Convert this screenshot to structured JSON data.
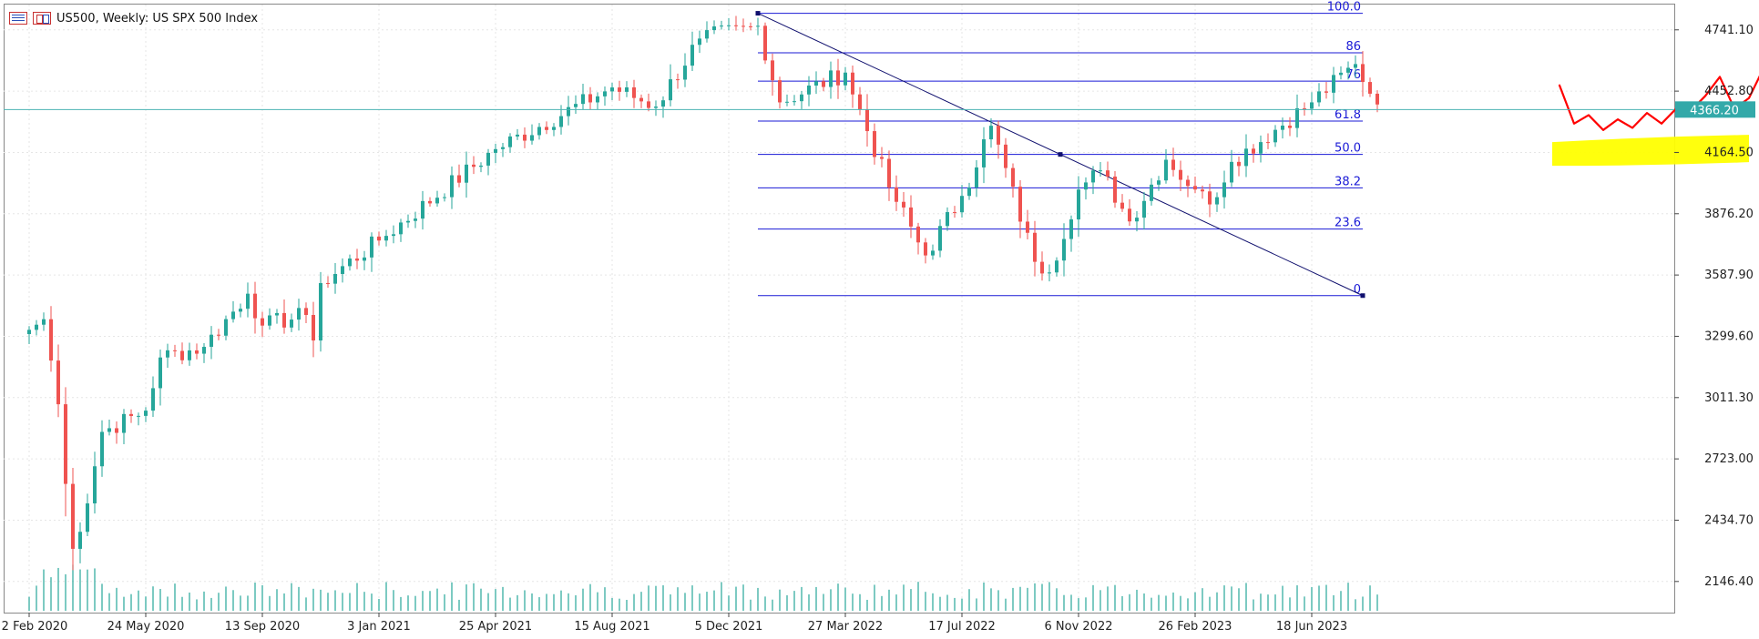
{
  "header": {
    "title": "US500, Weekly:  US SPX 500 Index"
  },
  "current_price_label": "4366.20",
  "colors": {
    "bull": "#26a69a",
    "bear": "#ef5350",
    "fib": "#1a1ad6",
    "trend": "#10106e",
    "price_line": "#4bb3b3",
    "price_badge": "#33a9a9",
    "forecast": "#ff0000",
    "highlight": "#ffff00",
    "volume": "#26a69a",
    "grid": "#e6e6e6"
  },
  "chart_data": {
    "type": "candlestick",
    "symbol": "US500",
    "timeframe": "Weekly",
    "description": "US SPX 500 Index",
    "y_axis": {
      "ticks": [
        "4741.10",
        "4452.80",
        "4164.50",
        "3876.20",
        "3587.90",
        "3299.60",
        "3011.30",
        "2723.00",
        "2434.70",
        "2146.40"
      ],
      "min": 2000,
      "max": 4860
    },
    "x_axis": {
      "ticks": [
        "2 Feb 2020",
        "24 May 2020",
        "13 Sep 2020",
        "3 Jan 2021",
        "25 Apr 2021",
        "15 Aug 2021",
        "5 Dec 2021",
        "27 Mar 2022",
        "17 Jul 2022",
        "6 Nov 2022",
        "26 Feb 2023",
        "18 Jun 2023"
      ],
      "weeks_between_ticks": 16,
      "first_tick_date": "2 Feb 2020",
      "visible_weeks": 225
    },
    "current_price": 4366.2,
    "weekly_close_keypoints": [
      {
        "date": "2 Feb 2020",
        "close": 3330
      },
      {
        "date": "16 Feb 2020",
        "close": 3380
      },
      {
        "date": "1 Mar 2020",
        "close": 2980
      },
      {
        "date": "15 Mar 2020",
        "close": 2300
      },
      {
        "date": "22 Mar 2020",
        "close": 2380
      },
      {
        "date": "12 Apr 2020",
        "close": 2850
      },
      {
        "date": "24 May 2020",
        "close": 2950
      },
      {
        "date": "7 Jun 2020",
        "close": 3200
      },
      {
        "date": "19 Jul 2020",
        "close": 3250
      },
      {
        "date": "30 Aug 2020",
        "close": 3500
      },
      {
        "date": "13 Sep 2020",
        "close": 3350
      },
      {
        "date": "25 Oct 2020",
        "close": 3400
      },
      {
        "date": "1 Nov 2020",
        "close": 3280
      },
      {
        "date": "8 Nov 2020",
        "close": 3550
      },
      {
        "date": "3 Jan 2021",
        "close": 3750
      },
      {
        "date": "25 Apr 2021",
        "close": 4180
      },
      {
        "date": "15 Aug 2021",
        "close": 4470
      },
      {
        "date": "26 Sep 2021",
        "close": 4380
      },
      {
        "date": "7 Nov 2021",
        "close": 4700
      },
      {
        "date": "2 Jan 2022",
        "close": 4760
      },
      {
        "date": "23 Jan 2022",
        "close": 4400
      },
      {
        "date": "27 Mar 2022",
        "close": 4540
      },
      {
        "date": "8 May 2022",
        "close": 4000
      },
      {
        "date": "12 Jun 2022",
        "close": 3680
      },
      {
        "date": "17 Jul 2022",
        "close": 3960
      },
      {
        "date": "14 Aug 2022",
        "close": 4290
      },
      {
        "date": "25 Sep 2022",
        "close": 3650
      },
      {
        "date": "9 Oct 2022",
        "close": 3600
      },
      {
        "date": "6 Nov 2022",
        "close": 3990
      },
      {
        "date": "27 Nov 2022",
        "close": 4080
      },
      {
        "date": "25 Dec 2022",
        "close": 3840
      },
      {
        "date": "29 Jan 2023",
        "close": 4130
      },
      {
        "date": "26 Feb 2023",
        "close": 3990
      },
      {
        "date": "12 Mar 2023",
        "close": 3920
      },
      {
        "date": "2 Apr 2023",
        "close": 4120
      },
      {
        "date": "18 Jun 2023",
        "close": 4400
      },
      {
        "date": "30 Jul 2023",
        "close": 4580
      },
      {
        "date": "20 Aug 2023",
        "close": 4390
      }
    ],
    "fibonacci": {
      "start": {
        "date": "2 Jan 2022",
        "price": 4819
      },
      "end": {
        "date": "6 Aug 2023",
        "price": 3491
      },
      "levels": [
        {
          "label": "100.0",
          "price": 4819
        },
        {
          "label": "86",
          "price": 4633
        },
        {
          "label": "76",
          "price": 4500
        },
        {
          "label": "61.8",
          "price": 4312
        },
        {
          "label": "50.0",
          "price": 4155
        },
        {
          "label": "38.2",
          "price": 3998
        },
        {
          "label": "23.6",
          "price": 3804
        },
        {
          "label": "0",
          "price": 3491
        }
      ]
    },
    "trend_line": [
      {
        "date": "2 Jan 2022",
        "price": 4819
      },
      {
        "date": "6 Aug 2023",
        "price": 3491
      }
    ],
    "annotations": {
      "forecast_path": [
        {
          "week": 210,
          "price": 4480
        },
        {
          "week": 212,
          "price": 4300
        },
        {
          "week": 214,
          "price": 4340
        },
        {
          "week": 216,
          "price": 4270
        },
        {
          "week": 218,
          "price": 4320
        },
        {
          "week": 220,
          "price": 4280
        },
        {
          "week": 222,
          "price": 4350
        },
        {
          "week": 224,
          "price": 4300
        },
        {
          "week": 226,
          "price": 4370
        },
        {
          "week": 228,
          "price": 4360
        },
        {
          "week": 230,
          "price": 4430
        },
        {
          "week": 232,
          "price": 4520
        },
        {
          "week": 234,
          "price": 4370
        },
        {
          "week": 236,
          "price": 4420
        },
        {
          "week": 238,
          "price": 4560
        },
        {
          "week": 240,
          "price": 4680
        }
      ],
      "highlight_zone": {
        "week_from": 209,
        "week_to": 236,
        "price_low": 4110,
        "price_high": 4230
      }
    }
  }
}
